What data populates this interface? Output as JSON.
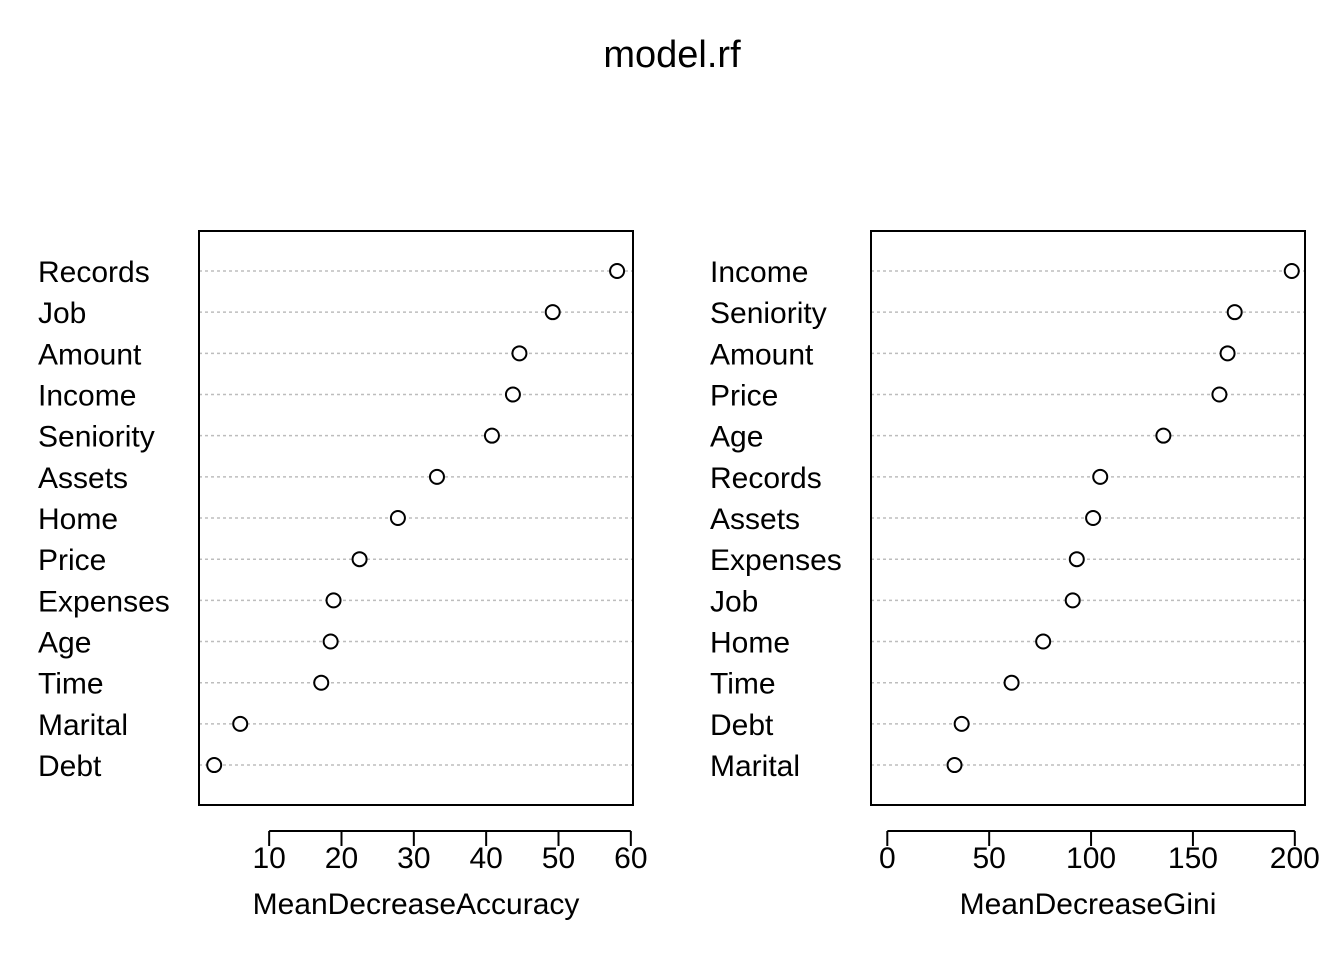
{
  "title": "model.rf",
  "chart_data": [
    {
      "type": "dotplot",
      "xlabel": "MeanDecreaseAccuracy",
      "ylabel": "",
      "xlim": [
        0.3,
        60.3
      ],
      "ticks": [
        10,
        20,
        30,
        40,
        50,
        60
      ],
      "grid": "dotted horizontal lines per variable",
      "categories": [
        "Records",
        "Job",
        "Amount",
        "Income",
        "Seniority",
        "Assets",
        "Home",
        "Price",
        "Expenses",
        "Age",
        "Time",
        "Marital",
        "Debt"
      ],
      "values": [
        58.1,
        49.2,
        44.6,
        43.7,
        40.8,
        33.2,
        27.8,
        22.5,
        18.9,
        18.5,
        17.2,
        6.0,
        2.4
      ]
    },
    {
      "type": "dotplot",
      "xlabel": "MeanDecreaseGini",
      "ylabel": "",
      "xlim": [
        -8,
        205
      ],
      "ticks": [
        0,
        50,
        100,
        150,
        200
      ],
      "grid": "dotted horizontal lines per variable",
      "categories": [
        "Income",
        "Seniority",
        "Amount",
        "Price",
        "Age",
        "Records",
        "Assets",
        "Expenses",
        "Job",
        "Home",
        "Time",
        "Debt",
        "Marital"
      ],
      "values": [
        198.5,
        170.5,
        167.0,
        163.0,
        135.5,
        104.5,
        101.0,
        93.0,
        91.0,
        76.5,
        61.0,
        36.5,
        33.0
      ]
    }
  ]
}
